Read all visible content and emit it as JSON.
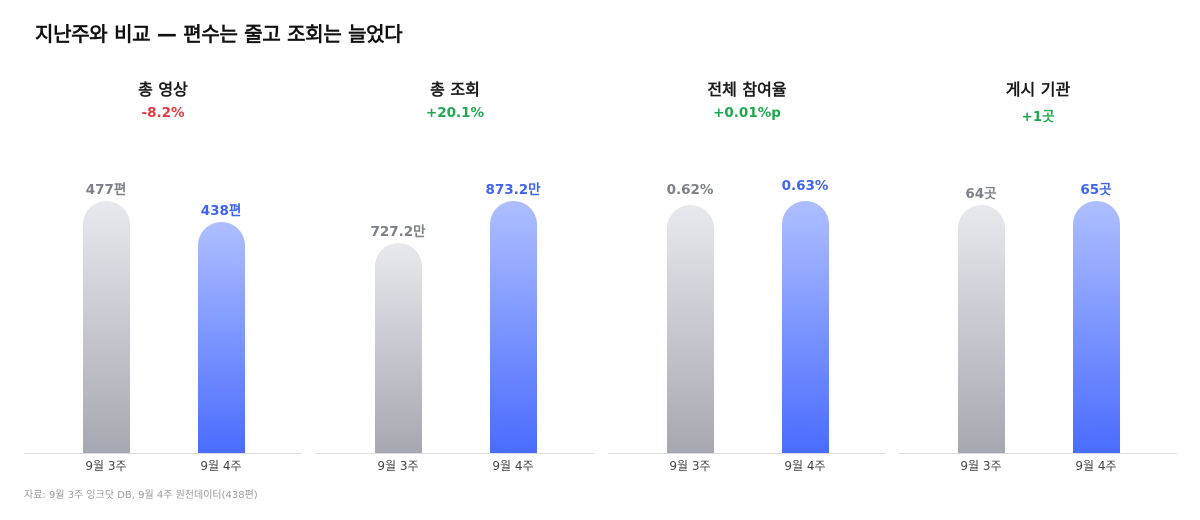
{
  "title": "지난주와 비교 — 편수는 줄고 조회는 늘었다",
  "source": "자료: 9월 3주 잉크닷 DB, 9월 4주 원천데이터(438편)",
  "colors": {
    "negative": "#e0393e",
    "positive": "#1ea84f",
    "prev_bar": "#a6a8b1",
    "curr_bar": "#4a6cff",
    "prev_label": "#7d8088",
    "curr_label": "#3e63f0"
  },
  "chart_data": [
    {
      "type": "bar",
      "title": "총 영상",
      "change": "-8.2%",
      "change_sign": "negative",
      "categories": [
        "9월 3주",
        "9월 4주"
      ],
      "values": [
        477,
        438
      ],
      "value_labels": [
        "477편",
        "438편"
      ]
    },
    {
      "type": "bar",
      "title": "총 조회",
      "change": "+20.1%",
      "change_sign": "positive",
      "categories": [
        "9월 3주",
        "9월 4주"
      ],
      "values": [
        727.2,
        873.2
      ],
      "value_labels": [
        "727.2만",
        "873.2만"
      ]
    },
    {
      "type": "bar",
      "title": "전체 참여율",
      "change": "+0.01%p",
      "change_sign": "positive",
      "categories": [
        "9월 3주",
        "9월 4주"
      ],
      "values": [
        0.62,
        0.63
      ],
      "value_labels": [
        "0.62%",
        "0.63%"
      ]
    },
    {
      "type": "bar",
      "title": "게시 기관",
      "change": "+1곳",
      "change_sign": "positive",
      "categories": [
        "9월 3주",
        "9월 4주"
      ],
      "values": [
        64,
        65
      ],
      "value_labels": [
        "64곳",
        "65곳"
      ]
    }
  ]
}
